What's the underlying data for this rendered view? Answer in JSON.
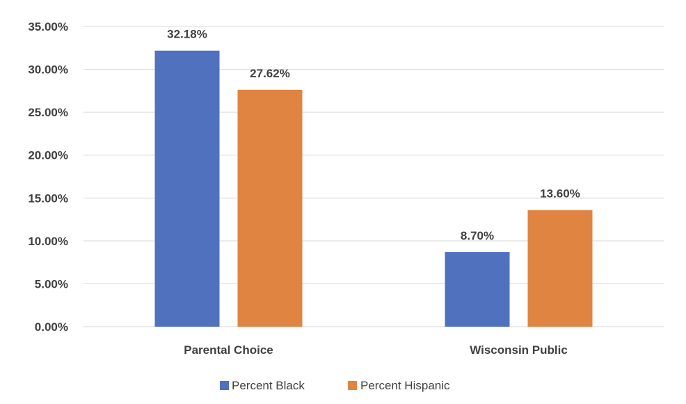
{
  "chart_data": {
    "type": "bar",
    "categories": [
      "Parental Choice",
      "Wisconsin Public"
    ],
    "series": [
      {
        "name": "Percent Black",
        "values": [
          32.18,
          8.7
        ],
        "labels": [
          "32.18%",
          "8.70%"
        ],
        "color": "#4f71be"
      },
      {
        "name": "Percent Hispanic",
        "values": [
          27.62,
          13.6
        ],
        "labels": [
          "27.62%",
          "13.60%"
        ],
        "color": "#e08442"
      }
    ],
    "y_ticks": [
      0,
      5,
      10,
      15,
      20,
      25,
      30,
      35
    ],
    "y_tick_labels": [
      "0.00%",
      "5.00%",
      "10.00%",
      "15.00%",
      "20.00%",
      "25.00%",
      "30.00%",
      "35.00%"
    ],
    "ylim": [
      0,
      35
    ],
    "title": "",
    "xlabel": "",
    "ylabel": "",
    "grid": true,
    "legend_position": "bottom"
  }
}
